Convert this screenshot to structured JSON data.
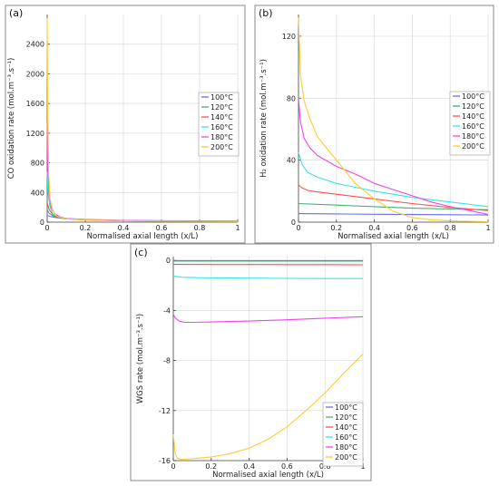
{
  "colors": {
    "100": "#6b6bf0",
    "120": "#3cb371",
    "140": "#ff4d4d",
    "160": "#33e6e6",
    "180": "#ee44ee",
    "200": "#ffcc33",
    "frame": "#888888",
    "axis": "#444444"
  },
  "chart_data": [
    {
      "panel_label": "(a)",
      "type": "line",
      "xlabel": "Normalised axial length (x/L)",
      "ylabel": "CO oxidation rate",
      "ylabel_units": "(mol.m⁻³.s⁻¹)",
      "xlim": [
        0,
        1
      ],
      "ylim": [
        0,
        2800
      ],
      "xticks": [
        0,
        0.2,
        0.4,
        0.6,
        0.8,
        1
      ],
      "xtick_labels": [
        "0",
        "0.2",
        "0.4",
        "0.6",
        "0.8",
        "1"
      ],
      "yticks": [
        0,
        400,
        800,
        1200,
        1600,
        2000,
        2400
      ],
      "ytick_labels": [
        "0",
        "400",
        "800",
        "1200",
        "1600",
        "2000",
        "2400"
      ],
      "legend": {
        "position": "right-middle",
        "entries": [
          "100°C",
          "120°C",
          "140°C",
          "160°C",
          "180°C",
          "200°C"
        ]
      },
      "series": [
        {
          "name": "100°C",
          "color_key": "100",
          "x": [
            0,
            0.02,
            0.05,
            0.1,
            0.2,
            0.4,
            0.6,
            0.8,
            1.0
          ],
          "y": [
            90,
            75,
            60,
            45,
            30,
            18,
            12,
            10,
            8
          ]
        },
        {
          "name": "120°C",
          "color_key": "120",
          "x": [
            0,
            0.01,
            0.03,
            0.06,
            0.1,
            0.2,
            0.4,
            0.6,
            0.8,
            1.0
          ],
          "y": [
            170,
            120,
            85,
            60,
            45,
            30,
            20,
            15,
            12,
            10
          ]
        },
        {
          "name": "140°C",
          "color_key": "140",
          "x": [
            0,
            0.01,
            0.03,
            0.06,
            0.1,
            0.2,
            0.4,
            0.6,
            0.8,
            1.0
          ],
          "y": [
            260,
            170,
            100,
            65,
            48,
            32,
            22,
            18,
            15,
            13
          ]
        },
        {
          "name": "160°C",
          "color_key": "160",
          "x": [
            0,
            0.005,
            0.015,
            0.03,
            0.06,
            0.1,
            0.2,
            0.4,
            0.6,
            0.8,
            1.0
          ],
          "y": [
            680,
            380,
            200,
            110,
            70,
            50,
            35,
            25,
            20,
            18,
            16
          ]
        },
        {
          "name": "180°C",
          "color_key": "180",
          "x": [
            0,
            0.004,
            0.01,
            0.02,
            0.04,
            0.07,
            0.1,
            0.2,
            0.4,
            0.6,
            0.8,
            1.0
          ],
          "y": [
            1350,
            700,
            380,
            200,
            110,
            70,
            50,
            35,
            25,
            20,
            17,
            15
          ]
        },
        {
          "name": "200°C",
          "color_key": "200",
          "x": [
            0,
            0.003,
            0.008,
            0.015,
            0.03,
            0.05,
            0.1,
            0.2,
            0.4,
            0.6,
            0.8,
            1.0
          ],
          "y": [
            2750,
            1400,
            650,
            320,
            150,
            80,
            45,
            30,
            20,
            15,
            12,
            10
          ]
        }
      ]
    },
    {
      "panel_label": "(b)",
      "type": "line",
      "xlabel": "Normalised axial length (x/L)",
      "ylabel": "H₂ oxidation rate",
      "ylabel_units": "(mol.m⁻³.s⁻¹)",
      "xlim": [
        0,
        1
      ],
      "ylim": [
        0,
        134
      ],
      "xticks": [
        0,
        0.2,
        0.4,
        0.6,
        0.8,
        1
      ],
      "xtick_labels": [
        "0",
        "0.2",
        "0.4",
        "0.6",
        "0.8",
        "1"
      ],
      "yticks": [
        0,
        40,
        80,
        120
      ],
      "ytick_labels": [
        "0",
        "40",
        "80",
        "120"
      ],
      "legend": {
        "position": "right-middle",
        "entries": [
          "100°C",
          "120°C",
          "140°C",
          "160°C",
          "180°C",
          "200°C"
        ]
      },
      "series": [
        {
          "name": "100°C",
          "color_key": "100",
          "x": [
            0,
            0.2,
            0.4,
            0.6,
            0.8,
            1.0
          ],
          "y": [
            5.5,
            5.3,
            5.1,
            4.9,
            4.8,
            4.6
          ]
        },
        {
          "name": "120°C",
          "color_key": "120",
          "x": [
            0,
            0.2,
            0.4,
            0.6,
            0.8,
            1.0
          ],
          "y": [
            12,
            11,
            10,
            9,
            8.5,
            8
          ]
        },
        {
          "name": "140°C",
          "color_key": "140",
          "x": [
            0,
            0.02,
            0.05,
            0.1,
            0.2,
            0.4,
            0.6,
            0.8,
            1.0
          ],
          "y": [
            24,
            22,
            20.5,
            19.5,
            18,
            15,
            12,
            9.5,
            7.5
          ]
        },
        {
          "name": "160°C",
          "color_key": "160",
          "x": [
            0,
            0.02,
            0.05,
            0.1,
            0.2,
            0.4,
            0.6,
            0.8,
            1.0
          ],
          "y": [
            45,
            37,
            32,
            29,
            25,
            20,
            16,
            13,
            10
          ]
        },
        {
          "name": "180°C",
          "color_key": "180",
          "x": [
            0,
            0.01,
            0.03,
            0.06,
            0.1,
            0.2,
            0.3,
            0.4,
            0.5,
            0.6,
            0.7,
            0.8,
            0.9,
            1.0
          ],
          "y": [
            80,
            65,
            54,
            48,
            43,
            36,
            31,
            25,
            21,
            17,
            13,
            10,
            7.5,
            5
          ]
        },
        {
          "name": "200°C",
          "color_key": "200",
          "x": [
            0,
            0.01,
            0.03,
            0.06,
            0.1,
            0.2,
            0.3,
            0.4,
            0.5,
            0.6,
            0.7,
            0.8,
            0.9,
            1.0
          ],
          "y": [
            132,
            95,
            78,
            67,
            55,
            40,
            25,
            15,
            7,
            3,
            1.5,
            0.8,
            0.5,
            0.3
          ]
        }
      ]
    },
    {
      "panel_label": "(c)",
      "type": "line",
      "xlabel": "Normalised axial length (x/L)",
      "ylabel": "WGS rate",
      "ylabel_units": "(mol.m⁻³.s⁻¹)",
      "xlim": [
        0,
        1
      ],
      "ylim": [
        -16,
        0.3
      ],
      "xticks": [
        0,
        0.2,
        0.4,
        0.6,
        0.8,
        1
      ],
      "xtick_labels": [
        "0",
        "0.2",
        "0.4",
        "0.6",
        "0.8",
        "1"
      ],
      "yticks": [
        0,
        -4,
        -8,
        -12,
        -16
      ],
      "ytick_labels": [
        "0",
        "-4",
        "-8",
        "-12",
        "-16"
      ],
      "legend": {
        "position": "bottom-right",
        "entries": [
          "100°C",
          "120°C",
          "140°C",
          "160°C",
          "180°C",
          "200°C"
        ]
      },
      "series": [
        {
          "name": "100°C",
          "color_key": "100",
          "x": [
            0,
            1.0
          ],
          "y": [
            -0.02,
            -0.02
          ]
        },
        {
          "name": "120°C",
          "color_key": "120",
          "x": [
            0,
            1.0
          ],
          "y": [
            -0.06,
            -0.06
          ]
        },
        {
          "name": "140°C",
          "color_key": "140",
          "x": [
            0,
            0.2,
            0.4,
            0.6,
            0.8,
            1.0
          ],
          "y": [
            -0.32,
            -0.33,
            -0.33,
            -0.34,
            -0.34,
            -0.35
          ]
        },
        {
          "name": "160°C",
          "color_key": "160",
          "x": [
            0,
            0.05,
            0.2,
            0.4,
            0.6,
            0.8,
            1.0
          ],
          "y": [
            -1.25,
            -1.35,
            -1.4,
            -1.42,
            -1.44,
            -1.45,
            -1.45
          ]
        },
        {
          "name": "180°C",
          "color_key": "180",
          "x": [
            0,
            0.01,
            0.03,
            0.06,
            0.1,
            0.2,
            0.4,
            0.6,
            0.8,
            1.0
          ],
          "y": [
            -4.3,
            -4.6,
            -4.85,
            -4.95,
            -4.95,
            -4.92,
            -4.85,
            -4.75,
            -4.62,
            -4.5
          ]
        },
        {
          "name": "200°C",
          "color_key": "200",
          "x": [
            0,
            0.01,
            0.02,
            0.04,
            0.1,
            0.2,
            0.3,
            0.4,
            0.5,
            0.6,
            0.7,
            0.8,
            0.9,
            1.0
          ],
          "y": [
            -13.9,
            -15.4,
            -15.8,
            -15.9,
            -15.85,
            -15.7,
            -15.45,
            -15.0,
            -14.3,
            -13.3,
            -12.0,
            -10.6,
            -9.0,
            -7.5
          ]
        }
      ]
    }
  ]
}
